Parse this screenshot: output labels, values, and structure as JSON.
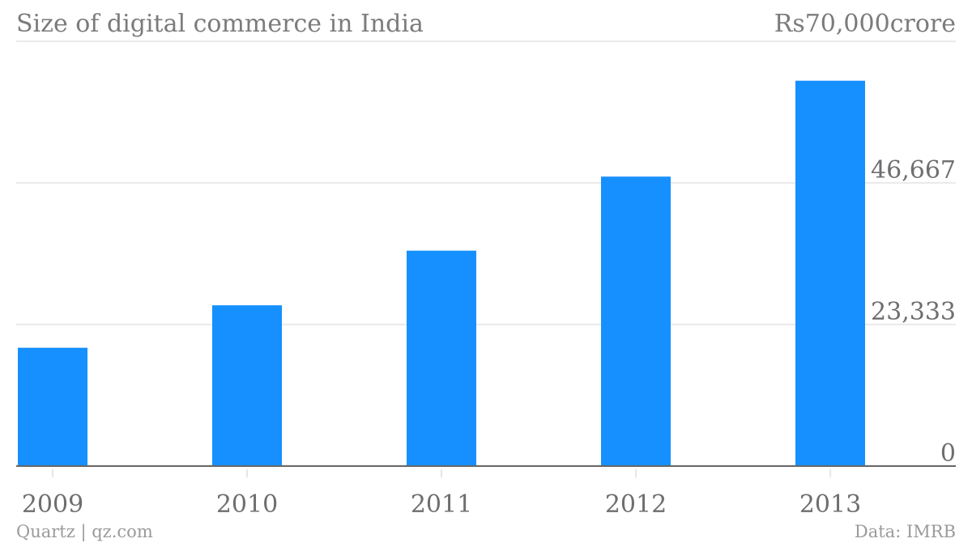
{
  "header": {
    "title": "Size of digital commerce in India",
    "top_label": "Rs70,000crore"
  },
  "footer": {
    "credit": "Quartz | qz.com",
    "source": "Data: IMRB"
  },
  "colors": {
    "bar": "#1790ff"
  },
  "chart_data": {
    "type": "bar",
    "title": "Size of digital commerce in India",
    "categories": [
      "2009",
      "2010",
      "2011",
      "2012",
      "2013"
    ],
    "values": [
      19500,
      26500,
      35500,
      47700,
      63500
    ],
    "ylim": [
      0,
      70000
    ],
    "yticks": [
      0,
      23333,
      46667
    ],
    "ytick_labels": [
      "0",
      "23,333",
      "46,667"
    ],
    "top_tick_label": "Rs70,000crore",
    "grid": true,
    "y_axis_side": "right"
  }
}
